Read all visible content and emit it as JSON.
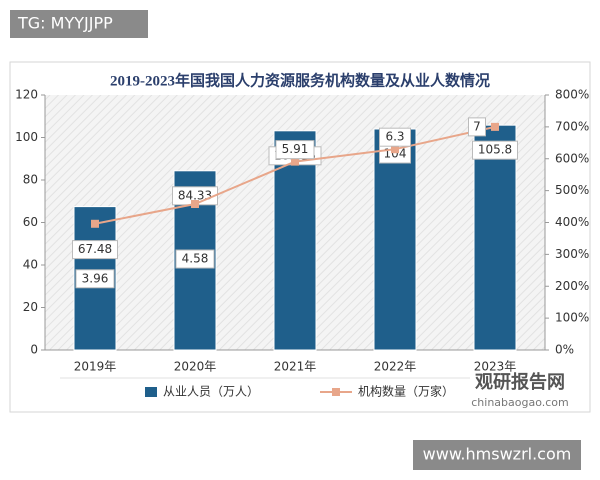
{
  "overlay": {
    "tag": "TG: MYYJJPP",
    "site": "www.hmswzrl.com",
    "logo": "观研报告网",
    "logo_url": "chinabaogao.com"
  },
  "chart_data": {
    "type": "bar-line",
    "title": "2019-2023年国我国人力资源服务机构数量及从业人数情况",
    "categories": [
      "2019年",
      "2020年",
      "2021年",
      "2022年",
      "2023年"
    ],
    "series": [
      {
        "name": "从业人员（万人）",
        "type": "bar",
        "color": "#1f5f8b",
        "values": [
          67.48,
          84.33,
          103.15,
          104,
          105.8
        ]
      },
      {
        "name": "机构数量（万家）",
        "type": "line",
        "axis": "y2",
        "color": "#e8a68a",
        "values": [
          3.96,
          4.58,
          5.91,
          6.3,
          7
        ]
      }
    ],
    "ylim": [
      0,
      120
    ],
    "yticks": [
      0,
      20,
      40,
      60,
      80,
      100,
      120
    ],
    "y2lim": [
      0,
      8
    ],
    "y2ticks": [
      {
        "value": 0,
        "label": "0%"
      },
      {
        "value": 1,
        "label": "100%"
      },
      {
        "value": 2,
        "label": "200%"
      },
      {
        "value": 3,
        "label": "300%"
      },
      {
        "value": 4,
        "label": "400%"
      },
      {
        "value": 5,
        "label": "500%"
      },
      {
        "value": 6,
        "label": "600%"
      },
      {
        "value": 7,
        "label": "700%"
      },
      {
        "value": 8,
        "label": "800%"
      }
    ],
    "legend": "bottom"
  }
}
